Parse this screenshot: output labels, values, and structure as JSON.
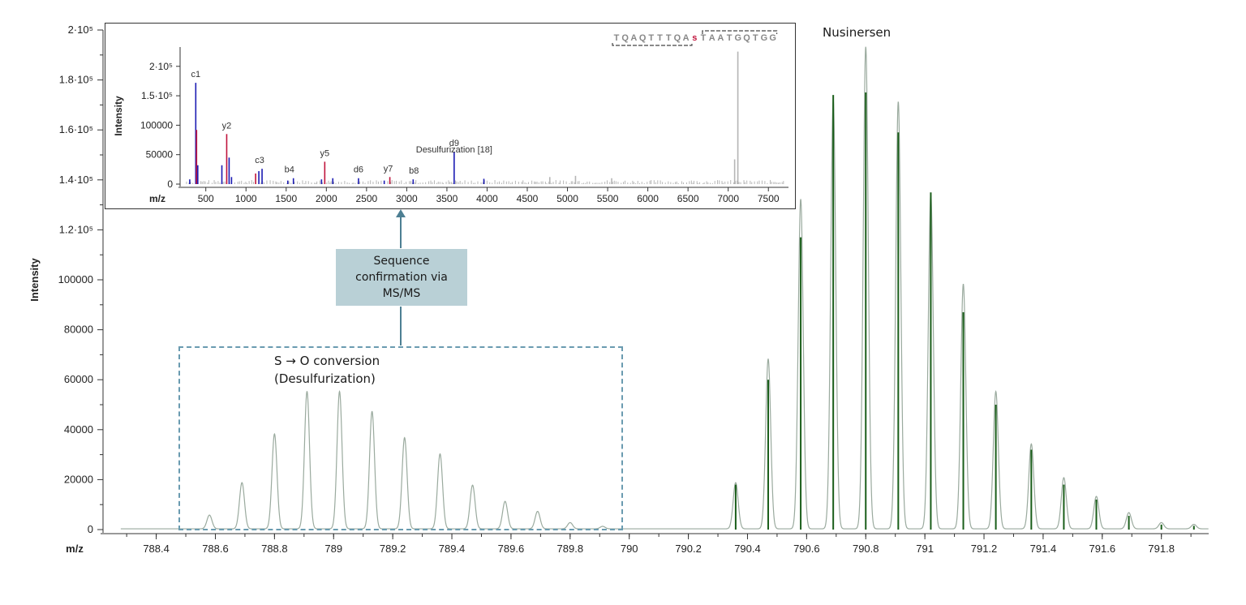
{
  "chart_data": [
    {
      "type": "line",
      "name": "main-spectrum",
      "xlabel": "m/z",
      "ylabel": "Intensity",
      "xlim": [
        788.22,
        791.96
      ],
      "ylim": [
        0,
        200000
      ],
      "x_ticks": [
        788.4,
        788.6,
        788.8,
        789,
        789.2,
        789.4,
        789.6,
        789.8,
        790,
        790.2,
        790.4,
        790.6,
        790.8,
        791,
        791.2,
        791.4,
        791.6,
        791.8
      ],
      "x_tick_labels": [
        "788.4",
        "788.6",
        "788.8",
        "789",
        "789.2",
        "789.4",
        "789.6",
        "789.8",
        "790",
        "790.2",
        "790.4",
        "790.6",
        "790.8",
        "791",
        "791.2",
        "791.4",
        "791.6",
        "791.8"
      ],
      "y_ticks": [
        0,
        20000,
        40000,
        60000,
        80000,
        100000,
        120000,
        140000,
        160000,
        180000,
        200000
      ],
      "y_tick_labels": [
        "0",
        "20000",
        "40000",
        "60000",
        "80000",
        "100000",
        "1.2·10⁵",
        "1.4·10⁵",
        "1.6·10⁵",
        "1.8·10⁵",
        "2·10⁵"
      ],
      "series": [
        {
          "name": "Desulfurization envelope (profile)",
          "color": "#9aaa9e",
          "peaks": [
            {
              "x": 788.58,
              "y": 5500
            },
            {
              "x": 788.69,
              "y": 18500
            },
            {
              "x": 788.8,
              "y": 38000
            },
            {
              "x": 788.91,
              "y": 55000
            },
            {
              "x": 789.02,
              "y": 55000
            },
            {
              "x": 789.13,
              "y": 47000
            },
            {
              "x": 789.24,
              "y": 36500
            },
            {
              "x": 789.36,
              "y": 30000
            },
            {
              "x": 789.47,
              "y": 17500
            },
            {
              "x": 789.58,
              "y": 11000
            },
            {
              "x": 789.69,
              "y": 7000
            },
            {
              "x": 789.8,
              "y": 2500
            },
            {
              "x": 789.91,
              "y": 1000
            }
          ]
        },
        {
          "name": "Nusinersen envelope (profile)",
          "color": "#9aaa9e",
          "peaks": [
            {
              "x": 790.36,
              "y": 18500
            },
            {
              "x": 790.47,
              "y": 68000
            },
            {
              "x": 790.58,
              "y": 132000
            },
            {
              "x": 790.69,
              "y": 172000
            },
            {
              "x": 790.8,
              "y": 193000
            },
            {
              "x": 790.91,
              "y": 171000
            },
            {
              "x": 791.02,
              "y": 134000
            },
            {
              "x": 791.13,
              "y": 98000
            },
            {
              "x": 791.24,
              "y": 55000
            },
            {
              "x": 791.36,
              "y": 34000
            },
            {
              "x": 791.47,
              "y": 20500
            },
            {
              "x": 791.58,
              "y": 13000
            },
            {
              "x": 791.69,
              "y": 6500
            },
            {
              "x": 791.8,
              "y": 2500
            },
            {
              "x": 791.91,
              "y": 1800
            }
          ]
        },
        {
          "name": "Nusinersen theoretical isotopes",
          "color": "#1a5e1a",
          "sticks": [
            {
              "x": 790.36,
              "y": 18000
            },
            {
              "x": 790.47,
              "y": 60000
            },
            {
              "x": 790.58,
              "y": 117000
            },
            {
              "x": 790.69,
              "y": 174000
            },
            {
              "x": 790.8,
              "y": 175000
            },
            {
              "x": 790.91,
              "y": 159000
            },
            {
              "x": 791.02,
              "y": 135000
            },
            {
              "x": 791.13,
              "y": 87000
            },
            {
              "x": 791.24,
              "y": 50000
            },
            {
              "x": 791.36,
              "y": 32000
            },
            {
              "x": 791.47,
              "y": 18000
            },
            {
              "x": 791.58,
              "y": 12000
            },
            {
              "x": 791.69,
              "y": 5500
            },
            {
              "x": 791.8,
              "y": 2000
            },
            {
              "x": 791.91,
              "y": 1500
            }
          ]
        }
      ],
      "annotations": {
        "nusinersen_label": "Nusinersen",
        "region_label": "S → O conversion\n(Desulfurization)",
        "callout_text": "Sequence\nconfirmation via\nMS/MS",
        "region_x_range": [
          788.46,
          789.96
        ]
      }
    },
    {
      "type": "bar",
      "name": "msms-inset",
      "xlabel": "m/z",
      "ylabel": "Intensity",
      "xlim": [
        180,
        7750
      ],
      "ylim": [
        0,
        230000
      ],
      "x_ticks": [
        500,
        1000,
        1500,
        2000,
        2500,
        3000,
        3500,
        4000,
        4500,
        5000,
        5500,
        6000,
        6500,
        7000,
        7500
      ],
      "x_tick_labels": [
        "500",
        "1000",
        "1500",
        "2000",
        "2500",
        "3000",
        "3500",
        "4000",
        "4500",
        "5000",
        "5500",
        "6000",
        "6500",
        "7000",
        "7500"
      ],
      "y_ticks": [
        0,
        50000,
        100000,
        150000,
        200000
      ],
      "y_tick_labels": [
        "0",
        "50000",
        "100000",
        "1.5·10⁵",
        "2·10⁵"
      ],
      "sequence": [
        "T",
        "Q",
        "A",
        "Q",
        "T",
        "T",
        "T",
        "Q",
        "A",
        "s",
        "T",
        "A",
        "A",
        "T",
        "G",
        "Q",
        "T",
        "G",
        "G"
      ],
      "sequence_highlight_index": 9,
      "highlight_color": "#c0143c",
      "peaks": [
        {
          "x": 300,
          "y": 8000,
          "color": "#1b1bb3"
        },
        {
          "x": 375,
          "y": 172000,
          "color": "#1b1bb3"
        },
        {
          "x": 385,
          "y": 92000,
          "color": "#c0143c"
        },
        {
          "x": 400,
          "y": 32000,
          "color": "#1b1bb3"
        },
        {
          "x": 700,
          "y": 32000,
          "color": "#1b1bb3"
        },
        {
          "x": 760,
          "y": 85000,
          "color": "#c0143c"
        },
        {
          "x": 790,
          "y": 45000,
          "color": "#1b1bb3"
        },
        {
          "x": 820,
          "y": 12000,
          "color": "#1b1bb3"
        },
        {
          "x": 1120,
          "y": 18000,
          "color": "#c0143c"
        },
        {
          "x": 1160,
          "y": 22000,
          "color": "#1b1bb3"
        },
        {
          "x": 1200,
          "y": 26000,
          "color": "#1b1bb3"
        },
        {
          "x": 1520,
          "y": 6000,
          "color": "#1b1bb3"
        },
        {
          "x": 1590,
          "y": 10000,
          "color": "#1b1bb3"
        },
        {
          "x": 1940,
          "y": 8000,
          "color": "#1b1bb3"
        },
        {
          "x": 1980,
          "y": 38000,
          "color": "#c0143c"
        },
        {
          "x": 2080,
          "y": 10000,
          "color": "#1b1bb3"
        },
        {
          "x": 2400,
          "y": 10000,
          "color": "#1b1bb3"
        },
        {
          "x": 2720,
          "y": 6000,
          "color": "#1b1bb3"
        },
        {
          "x": 2790,
          "y": 12000,
          "color": "#c0143c"
        },
        {
          "x": 3080,
          "y": 8000,
          "color": "#1b1bb3"
        },
        {
          "x": 3590,
          "y": 55000,
          "color": "#1b1bb3"
        },
        {
          "x": 3960,
          "y": 9000,
          "color": "#1b1bb3"
        },
        {
          "x": 4780,
          "y": 12000,
          "color": "#b5b5b5"
        },
        {
          "x": 5100,
          "y": 14000,
          "color": "#b5b5b5"
        },
        {
          "x": 5550,
          "y": 10000,
          "color": "#b5b5b5"
        },
        {
          "x": 7080,
          "y": 42000,
          "color": "#b5b5b5"
        },
        {
          "x": 7120,
          "y": 225000,
          "color": "#b5b5b5"
        }
      ],
      "noise_color": "#b5b5b5",
      "fragment_labels": [
        {
          "text": "c1",
          "x": 375,
          "y": 172000
        },
        {
          "text": "y2",
          "x": 760,
          "y": 85000
        },
        {
          "text": "c3",
          "x": 1170,
          "y": 26000
        },
        {
          "text": "b4",
          "x": 1540,
          "y": 10000
        },
        {
          "text": "y5",
          "x": 1980,
          "y": 38000
        },
        {
          "text": "d6",
          "x": 2400,
          "y": 10000
        },
        {
          "text": "y7",
          "x": 2770,
          "y": 12000
        },
        {
          "text": "b8",
          "x": 3090,
          "y": 8000
        },
        {
          "text": "d9",
          "x": 3590,
          "y": 55000
        }
      ],
      "annotation": "Desulfurization [18]"
    }
  ]
}
